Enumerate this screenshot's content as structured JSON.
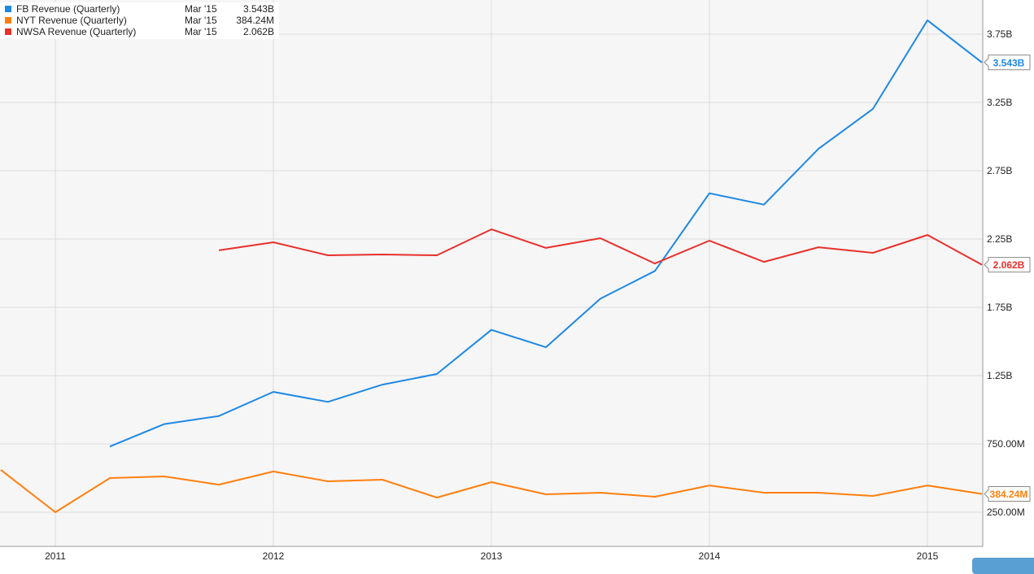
{
  "chart_data": {
    "type": "line",
    "title": "",
    "xlabel": "",
    "ylabel": "",
    "xlim": [
      2010.75,
      2015.5
    ],
    "ylim": [
      0,
      4.0
    ],
    "y_unit": "billions",
    "grid": true,
    "legend_position": "top-left",
    "x_ticks": [
      2011,
      2012,
      2013,
      2014,
      2015
    ],
    "x_tick_labels": [
      "2011",
      "2012",
      "2013",
      "2014",
      "2015"
    ],
    "y_ticks": [
      0.25,
      0.75,
      1.25,
      1.75,
      2.25,
      2.75,
      3.25,
      3.75
    ],
    "y_tick_labels": [
      "250.00M",
      "750.00M",
      "1.25B",
      "1.75B",
      "2.25B",
      "2.75B",
      "3.25B",
      "3.75B"
    ],
    "series": [
      {
        "name": "FB Revenue (Quarterly)",
        "color": "#1e88e5",
        "last_date": "Mar '15",
        "last_label": "3.543B",
        "x": [
          2011.25,
          2011.5,
          2011.75,
          2012.0,
          2012.25,
          2012.5,
          2012.75,
          2013.0,
          2013.25,
          2013.5,
          2013.75,
          2014.0,
          2014.25,
          2014.5,
          2014.75,
          2015.0,
          2015.25
        ],
        "values": [
          0.731,
          0.895,
          0.954,
          1.131,
          1.058,
          1.184,
          1.262,
          1.585,
          1.458,
          1.813,
          2.016,
          2.585,
          2.502,
          2.91,
          3.203,
          3.851,
          3.543
        ]
      },
      {
        "name": "NYT Revenue (Quarterly)",
        "color": "#ff7f0e",
        "last_date": "Mar '15",
        "last_label": "384.24M",
        "x": [
          2010.75,
          2011.0,
          2011.25,
          2011.5,
          2011.75,
          2012.0,
          2012.25,
          2012.5,
          2012.75,
          2013.0,
          2013.25,
          2013.5,
          2013.75,
          2014.0,
          2014.25,
          2014.5,
          2014.75,
          2015.0,
          2015.25
        ],
        "values": [
          0.56,
          0.25,
          0.5,
          0.512,
          0.452,
          0.548,
          0.476,
          0.488,
          0.357,
          0.47,
          0.381,
          0.393,
          0.363,
          0.446,
          0.393,
          0.393,
          0.369,
          0.446,
          0.384
        ]
      },
      {
        "name": "NWSA Revenue (Quarterly)",
        "color": "#e8302c",
        "last_date": "Mar '15",
        "last_label": "2.062B",
        "x": [
          2011.75,
          2012.0,
          2012.25,
          2012.5,
          2012.75,
          2013.0,
          2013.25,
          2013.5,
          2013.75,
          2014.0,
          2014.25,
          2014.5,
          2014.75,
          2015.0,
          2015.25
        ],
        "values": [
          2.167,
          2.226,
          2.131,
          2.137,
          2.131,
          2.321,
          2.185,
          2.256,
          2.071,
          2.238,
          2.083,
          2.19,
          2.149,
          2.28,
          2.062
        ]
      }
    ]
  }
}
